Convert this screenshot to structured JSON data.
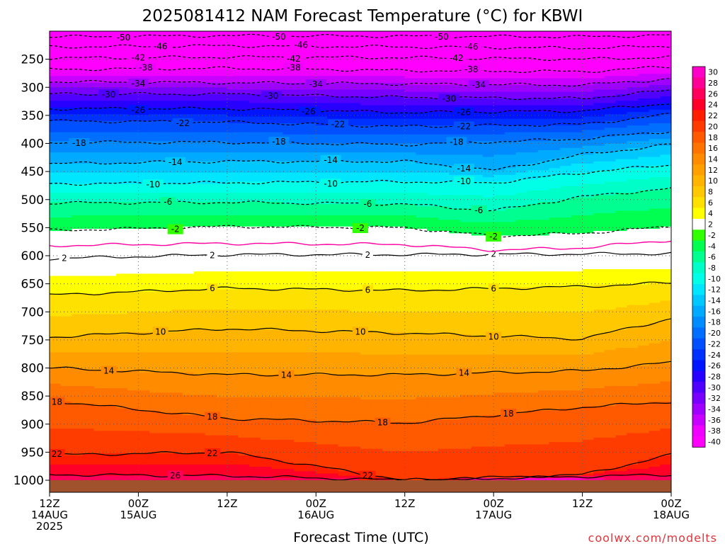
{
  "chart_data": {
    "type": "heatmap",
    "title": "2025081412 NAM Forecast Temperature (°C) for KBWI",
    "xlabel": "Forecast Time (UTC)",
    "ylabel": "",
    "credit": "coolwx.com/modelts",
    "y_axis": {
      "quantity": "pressure (hPa)",
      "inverted": true,
      "ylim": [
        1000,
        200
      ],
      "ticks": [
        250,
        300,
        350,
        400,
        450,
        500,
        550,
        600,
        650,
        700,
        750,
        800,
        850,
        900,
        950,
        1000
      ]
    },
    "x_axis": {
      "range_hours": [
        0,
        84
      ],
      "ticks": [
        {
          "hour": 0,
          "line1": "12Z",
          "line2": "14AUG",
          "line3": "2025"
        },
        {
          "hour": 12,
          "line1": "00Z",
          "line2": "15AUG",
          "line3": ""
        },
        {
          "hour": 24,
          "line1": "12Z",
          "line2": "",
          "line3": ""
        },
        {
          "hour": 36,
          "line1": "00Z",
          "line2": "16AUG",
          "line3": ""
        },
        {
          "hour": 48,
          "line1": "12Z",
          "line2": "",
          "line3": ""
        },
        {
          "hour": 60,
          "line1": "00Z",
          "line2": "17AUG",
          "line3": ""
        },
        {
          "hour": 72,
          "line1": "12Z",
          "line2": "",
          "line3": ""
        },
        {
          "hour": 84,
          "line1": "00Z",
          "line2": "18AUG",
          "line3": ""
        }
      ],
      "grid": true
    },
    "colorbar": {
      "levels": [
        30,
        28,
        26,
        24,
        22,
        20,
        18,
        16,
        14,
        12,
        10,
        8,
        6,
        4,
        2,
        -2,
        -4,
        -6,
        -8,
        -10,
        -12,
        -14,
        -16,
        -18,
        -20,
        -22,
        -24,
        -26,
        -28,
        -30,
        -32,
        -34,
        -36,
        -38,
        -40
      ],
      "colors": [
        "#ff00c8",
        "#ff0096",
        "#ff005a",
        "#ff0028",
        "#ff1e00",
        "#ff3c00",
        "#ff5a00",
        "#ff7300",
        "#ff8c00",
        "#ffa000",
        "#ffb400",
        "#ffc800",
        "#ffe100",
        "#ffff00",
        "#ffffff",
        "#32ff00",
        "#00ff50",
        "#00ff90",
        "#00ffc8",
        "#00ffe6",
        "#00e6ff",
        "#00c8ff",
        "#00aaff",
        "#008cff",
        "#006eff",
        "#0050ff",
        "#0032ff",
        "#0014ff",
        "#2800ff",
        "#5000ff",
        "#7800ff",
        "#a000ff",
        "#c800ff",
        "#f000ff",
        "#ff00ff"
      ]
    },
    "contours": [
      {
        "value": -50,
        "style": "dashed",
        "profile": [
          [
            0,
            210
          ],
          [
            24,
            208
          ],
          [
            48,
            209
          ],
          [
            72,
            210
          ],
          [
            84,
            207
          ]
        ],
        "label_hours": [
          10,
          31,
          53
        ]
      },
      {
        "value": -46,
        "style": "dashed",
        "profile": [
          [
            0,
            228
          ],
          [
            24,
            226
          ],
          [
            48,
            228
          ],
          [
            72,
            230
          ],
          [
            84,
            227
          ]
        ],
        "label_hours": [
          15,
          34,
          57
        ]
      },
      {
        "value": -42,
        "style": "dashed",
        "profile": [
          [
            0,
            248
          ],
          [
            24,
            246
          ],
          [
            48,
            247
          ],
          [
            72,
            250
          ],
          [
            84,
            246
          ]
        ],
        "label_hours": [
          12,
          33,
          55
        ]
      },
      {
        "value": -38,
        "style": "dashed",
        "profile": [
          [
            0,
            268
          ],
          [
            24,
            266
          ],
          [
            48,
            270
          ],
          [
            72,
            272
          ],
          [
            84,
            263
          ]
        ],
        "label_hours": [
          13,
          33,
          57
        ]
      },
      {
        "value": -34,
        "style": "dashed",
        "profile": [
          [
            0,
            290
          ],
          [
            24,
            292
          ],
          [
            48,
            294
          ],
          [
            72,
            296
          ],
          [
            84,
            285
          ]
        ],
        "label_hours": [
          12,
          36,
          58
        ]
      },
      {
        "value": -30,
        "style": "dashed",
        "profile": [
          [
            0,
            312
          ],
          [
            24,
            312
          ],
          [
            48,
            318
          ],
          [
            72,
            320
          ],
          [
            84,
            305
          ]
        ],
        "label_hours": [
          8,
          30,
          54
        ]
      },
      {
        "value": -26,
        "style": "dashed",
        "profile": [
          [
            0,
            338
          ],
          [
            24,
            338
          ],
          [
            48,
            345
          ],
          [
            72,
            342
          ],
          [
            84,
            328
          ]
        ],
        "label_hours": [
          12,
          35,
          56
        ]
      },
      {
        "value": -22,
        "style": "dashed",
        "profile": [
          [
            0,
            360
          ],
          [
            24,
            362
          ],
          [
            48,
            370
          ],
          [
            72,
            366
          ],
          [
            84,
            348
          ]
        ],
        "label_hours": [
          18,
          39,
          56
        ]
      },
      {
        "value": -18,
        "style": "dashed",
        "profile": [
          [
            0,
            398
          ],
          [
            24,
            398
          ],
          [
            48,
            402
          ],
          [
            72,
            392
          ],
          [
            84,
            378
          ]
        ],
        "label_hours": [
          4,
          31,
          55
        ]
      },
      {
        "value": -14,
        "style": "dashed",
        "profile": [
          [
            0,
            436
          ],
          [
            24,
            432
          ],
          [
            48,
            432
          ],
          [
            60,
            448
          ],
          [
            72,
            420
          ],
          [
            84,
            402
          ]
        ],
        "label_hours": [
          17,
          38,
          56
        ]
      },
      {
        "value": -10,
        "style": "dashed",
        "profile": [
          [
            0,
            472
          ],
          [
            24,
            470
          ],
          [
            48,
            468
          ],
          [
            60,
            470
          ],
          [
            72,
            452
          ],
          [
            84,
            438
          ]
        ],
        "label_hours": [
          14,
          38,
          56
        ]
      },
      {
        "value": -6,
        "style": "dashed",
        "profile": [
          [
            0,
            506
          ],
          [
            24,
            505
          ],
          [
            48,
            508
          ],
          [
            60,
            520
          ],
          [
            72,
            495
          ],
          [
            84,
            480
          ]
        ],
        "label_hours": [
          16,
          43,
          58
        ]
      },
      {
        "value": -2,
        "style": "dashed",
        "profile": [
          [
            0,
            555
          ],
          [
            24,
            548
          ],
          [
            48,
            550
          ],
          [
            60,
            565
          ],
          [
            72,
            560
          ],
          [
            84,
            548
          ]
        ],
        "label_hours": [
          17,
          42,
          60
        ]
      },
      {
        "value": 2,
        "style": "solid",
        "profile": [
          [
            0,
            605
          ],
          [
            24,
            598
          ],
          [
            48,
            598
          ],
          [
            72,
            597
          ],
          [
            84,
            596
          ]
        ],
        "label_hours": [
          2,
          22,
          43,
          60
        ]
      },
      {
        "value": 6,
        "style": "solid",
        "profile": [
          [
            0,
            670
          ],
          [
            24,
            658
          ],
          [
            48,
            662
          ],
          [
            72,
            655
          ],
          [
            84,
            648
          ]
        ],
        "label_hours": [
          22,
          43,
          60
        ]
      },
      {
        "value": 10,
        "style": "solid",
        "profile": [
          [
            0,
            745
          ],
          [
            24,
            730
          ],
          [
            48,
            738
          ],
          [
            72,
            748
          ],
          [
            84,
            712
          ]
        ],
        "label_hours": [
          15,
          42,
          60
        ]
      },
      {
        "value": 14,
        "style": "solid",
        "profile": [
          [
            0,
            800
          ],
          [
            24,
            812
          ],
          [
            48,
            812
          ],
          [
            72,
            805
          ],
          [
            84,
            790
          ]
        ],
        "label_hours": [
          8,
          32,
          56
        ]
      },
      {
        "value": 18,
        "style": "solid",
        "profile": [
          [
            0,
            858
          ],
          [
            24,
            890
          ],
          [
            48,
            898
          ],
          [
            72,
            870
          ],
          [
            84,
            860
          ]
        ],
        "label_hours": [
          1,
          22,
          45,
          62
        ]
      },
      {
        "value": 22,
        "style": "solid",
        "profile": [
          [
            0,
            955
          ],
          [
            24,
            950
          ],
          [
            48,
            1000
          ],
          [
            72,
            990
          ],
          [
            84,
            955
          ]
        ],
        "label_hours": [
          1,
          22,
          43
        ]
      },
      {
        "value": 26,
        "style": "solid",
        "profile": [
          [
            0,
            990
          ],
          [
            24,
            992
          ],
          [
            48,
            1000
          ],
          [
            84,
            990
          ]
        ],
        "label_hours": [
          17
        ]
      }
    ],
    "freezing_line": {
      "value": 0,
      "color": "#ff00a0",
      "profile": [
        [
          0,
          582
        ],
        [
          24,
          578
        ],
        [
          48,
          580
        ],
        [
          60,
          590
        ],
        [
          72,
          586
        ],
        [
          84,
          572
        ]
      ]
    },
    "annotations": [
      "2",
      "6",
      "10",
      "14",
      "18",
      "22",
      "26",
      "-2",
      "-6",
      "-10",
      "-14",
      "-18",
      "-22",
      "-26",
      "-30",
      "-34",
      "-38",
      "-42",
      "-46",
      "-50"
    ]
  }
}
